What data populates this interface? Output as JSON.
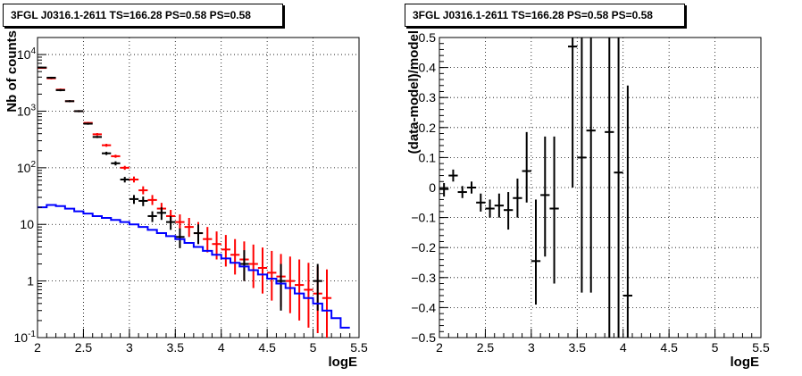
{
  "chart_data": [
    {
      "type": "scatter",
      "panel": "counts",
      "title": "3FGL J0316.1-2611 TS=166.28 PS=0.58 PS=0.58",
      "xlabel": "logE",
      "ylabel": "Nb of counts",
      "xlim": [
        2,
        5.5
      ],
      "ylim": [
        0.1,
        20000
      ],
      "yscale": "log",
      "grid": true,
      "xticks": [
        "2",
        "2.5",
        "3",
        "3.5",
        "4",
        "4.5",
        "5",
        "5.5"
      ],
      "yticks": [
        "10^{-1}",
        "1",
        "10",
        "10^{2}",
        "10^{3}",
        "10^{4}"
      ],
      "series": [
        {
          "color": "#ff0000",
          "style": "model-with-error-bars",
          "x": [
            2.05,
            2.15,
            2.25,
            2.35,
            2.45,
            2.55,
            2.65,
            2.75,
            2.85,
            2.95,
            3.05,
            3.15,
            3.25,
            3.35,
            3.45,
            3.55,
            3.65,
            3.75,
            3.85,
            3.95,
            4.05,
            4.15,
            4.25,
            4.35,
            4.45,
            4.55,
            4.65,
            4.75,
            4.85,
            4.95,
            5.05,
            5.15
          ],
          "y": [
            5800,
            3800,
            2400,
            1500,
            1000,
            620,
            390,
            250,
            160,
            100,
            62,
            40,
            27,
            19,
            14,
            11,
            9,
            7,
            5.5,
            4.5,
            3.6,
            2.9,
            2.4,
            2.0,
            1.7,
            1.4,
            1.2,
            1.0,
            0.85,
            0.7,
            0.6,
            0.5
          ],
          "ylow": [
            5650,
            3650,
            2300,
            1440,
            960,
            595,
            370,
            235,
            150,
            92,
            55,
            34,
            22,
            15,
            10.5,
            8,
            6,
            4.5,
            3.2,
            2.4,
            1.8,
            1.3,
            1.0,
            0.75,
            0.6,
            0.45,
            0.35,
            0.27,
            0.2,
            0.15,
            0.12,
            0.1
          ],
          "yhigh": [
            5950,
            3950,
            2500,
            1560,
            1040,
            645,
            410,
            265,
            170,
            108,
            70,
            47,
            33,
            24,
            18,
            15,
            13,
            11,
            9,
            7.5,
            6.5,
            5.5,
            5,
            4.4,
            3.9,
            3.4,
            3.0,
            2.7,
            2.4,
            2.1,
            1.8,
            1.6
          ]
        },
        {
          "color": "#000000",
          "style": "data-with-error-bars",
          "x": [
            2.05,
            2.15,
            2.25,
            2.35,
            2.45,
            2.55,
            2.65,
            2.75,
            2.85,
            2.95,
            3.05,
            3.15,
            3.25,
            3.35,
            3.45,
            3.55,
            3.75,
            4.25,
            4.65,
            5.05
          ],
          "y": [
            5900,
            3900,
            2350,
            1500,
            1000,
            600,
            350,
            180,
            120,
            62,
            28,
            26,
            14,
            16,
            11,
            6,
            7,
            2,
            1,
            1
          ],
          "ylow": [
            5750,
            3750,
            2250,
            1440,
            960,
            575,
            335,
            168,
            110,
            55,
            23,
            21,
            11,
            12,
            8,
            3.8,
            4.5,
            1,
            0.3,
            0.3
          ],
          "yhigh": [
            6050,
            4050,
            2450,
            1560,
            1040,
            625,
            365,
            192,
            130,
            69,
            33,
            31,
            17,
            20,
            14,
            8.5,
            10,
            3.5,
            2,
            2
          ]
        },
        {
          "color": "#0000ff",
          "style": "step",
          "x": [
            2.0,
            2.1,
            2.2,
            2.3,
            2.4,
            2.5,
            2.6,
            2.7,
            2.8,
            2.9,
            3.0,
            3.1,
            3.2,
            3.3,
            3.4,
            3.5,
            3.6,
            3.7,
            3.8,
            3.9,
            4.0,
            4.1,
            4.2,
            4.3,
            4.4,
            4.5,
            4.6,
            4.7,
            4.8,
            4.9,
            5.0,
            5.1,
            5.2,
            5.3
          ],
          "y": [
            20,
            22,
            21,
            19,
            17,
            15.5,
            14,
            13,
            12,
            11,
            10,
            9,
            8,
            7,
            6.2,
            5.5,
            4.7,
            4,
            3.4,
            2.9,
            2.5,
            2.1,
            1.8,
            1.55,
            1.3,
            1.1,
            0.9,
            0.75,
            0.6,
            0.5,
            0.4,
            0.3,
            0.22,
            0.15
          ]
        }
      ]
    },
    {
      "type": "scatter",
      "panel": "residuals",
      "title": "3FGL J0316.1-2611 TS=166.28 PS=0.58 PS=0.58",
      "xlabel": "logE",
      "ylabel": "(data-model)/model",
      "xlim": [
        2,
        5.5
      ],
      "ylim": [
        -0.5,
        0.5
      ],
      "grid": true,
      "xticks": [
        "2",
        "2.5",
        "3",
        "3.5",
        "4",
        "4.5",
        "5",
        "5.5"
      ],
      "yticks": [
        "-0.5",
        "-0.4",
        "-0.3",
        "-0.2",
        "-0.1",
        "0",
        "0.1",
        "0.2",
        "0.3",
        "0.4",
        "0.5"
      ],
      "series": [
        {
          "color": "#000000",
          "style": "data-with-error-bars",
          "x": [
            2.05,
            2.15,
            2.25,
            2.35,
            2.45,
            2.55,
            2.65,
            2.75,
            2.85,
            2.95,
            3.05,
            3.15,
            3.25,
            3.45,
            3.55,
            3.65,
            3.85,
            3.95,
            4.05
          ],
          "y": [
            -0.005,
            0.04,
            -0.015,
            0.0,
            -0.05,
            -0.07,
            -0.06,
            -0.075,
            -0.035,
            0.055,
            -0.245,
            -0.025,
            -0.07,
            0.47,
            0.1,
            0.19,
            0.185,
            0.05,
            -0.36
          ],
          "ylow": [
            -0.03,
            0.02,
            -0.035,
            -0.02,
            -0.08,
            -0.1,
            -0.1,
            -0.14,
            -0.1,
            -0.05,
            -0.39,
            -0.23,
            -0.32,
            0.0,
            -0.35,
            -0.35,
            -0.5,
            -0.5,
            -0.5
          ],
          "yhigh": [
            0.015,
            0.06,
            0.005,
            0.02,
            -0.02,
            -0.04,
            -0.02,
            -0.015,
            0.03,
            0.185,
            -0.04,
            0.17,
            0.17,
            0.5,
            0.5,
            0.5,
            0.5,
            0.5,
            0.34
          ]
        }
      ]
    }
  ]
}
